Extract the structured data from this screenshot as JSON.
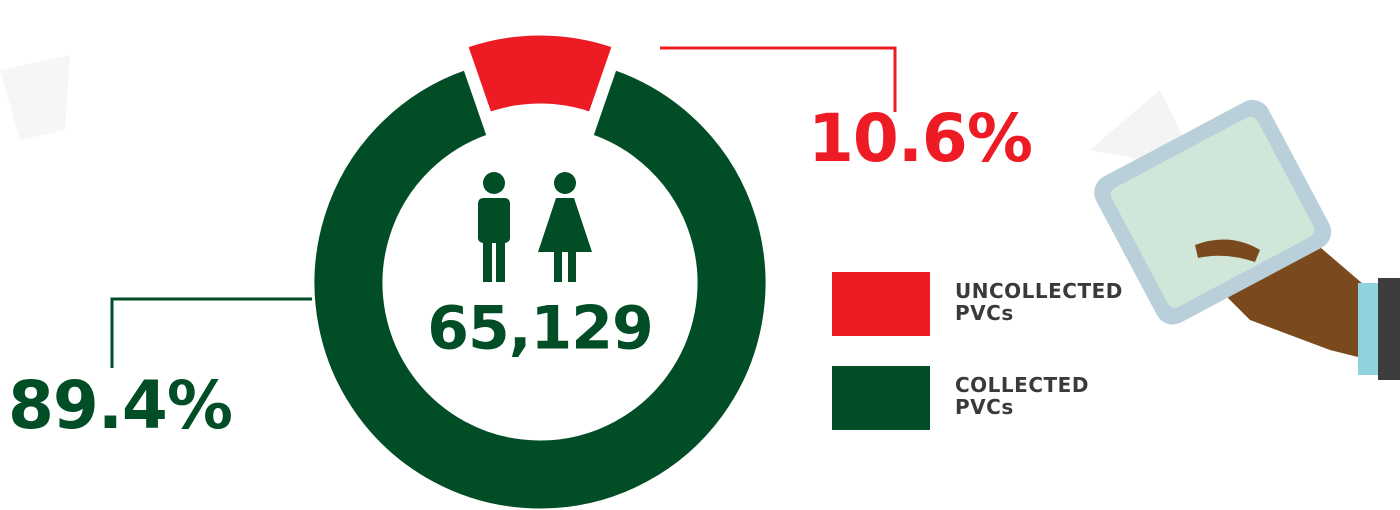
{
  "chart_data": {
    "type": "pie",
    "donut": true,
    "center_text": "65,129",
    "categories": [
      "UNCOLLECTED PVCs",
      "COLLECTED PVCs"
    ],
    "values": [
      10.6,
      89.4
    ],
    "value_labels": [
      "10.6%",
      "89.4%"
    ],
    "colors": [
      "#ed1c24",
      "#004d26"
    ]
  }
}
